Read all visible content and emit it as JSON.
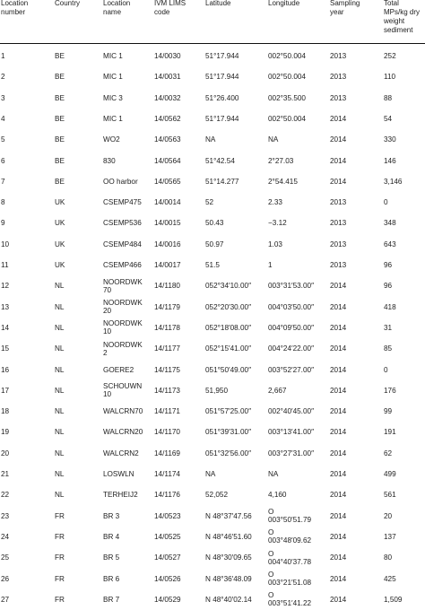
{
  "table": {
    "headers": [
      "Location\nnumber",
      "Country",
      "Location\nname",
      "IVM LIMS\ncode",
      "Latitude",
      "Longitude",
      "Sampling\nyear",
      "Total\nMPs/kg dry\nweight\nsediment"
    ],
    "rows": [
      [
        "1",
        "BE",
        "MIC 1",
        "14/0030",
        "51°17.944",
        "002°50.004",
        "2013",
        "252"
      ],
      [
        "2",
        "BE",
        "MIC 1",
        "14/0031",
        "51°17.944",
        "002°50.004",
        "2013",
        "110"
      ],
      [
        "3",
        "BE",
        "MIC 3",
        "14/0032",
        "51°26.400",
        "002°35.500",
        "2013",
        "88"
      ],
      [
        "4",
        "BE",
        "MIC 1",
        "14/0562",
        "51°17.944",
        "002°50.004",
        "2014",
        "54"
      ],
      [
        "5",
        "BE",
        "WO2",
        "14/0563",
        "NA",
        "NA",
        "2014",
        "330"
      ],
      [
        "6",
        "BE",
        "830",
        "14/0564",
        "51°42.54",
        "2°27.03",
        "2014",
        "146"
      ],
      [
        "7",
        "BE",
        "OO harbor",
        "14/0565",
        "51°14.277",
        "2°54.415",
        "2014",
        "3,146"
      ],
      [
        "8",
        "UK",
        "CSEMP475",
        "14/0014",
        "52",
        "2.33",
        "2013",
        "0"
      ],
      [
        "9",
        "UK",
        "CSEMP536",
        "14/0015",
        "50.43",
        "−3.12",
        "2013",
        "348"
      ],
      [
        "10",
        "UK",
        "CSEMP484",
        "14/0016",
        "50.97",
        "1.03",
        "2013",
        "643"
      ],
      [
        "11",
        "UK",
        "CSEMP466",
        "14/0017",
        "51.5",
        "1",
        "2013",
        "96"
      ],
      [
        "12",
        "NL",
        "NOORDWK\n70",
        "14/1180",
        "052°34′10.00″",
        "003°31′53.00″",
        "2014",
        "96"
      ],
      [
        "13",
        "NL",
        "NOORDWK\n20",
        "14/1179",
        "052°20′30.00″",
        "004°03′50.00″",
        "2014",
        "418"
      ],
      [
        "14",
        "NL",
        "NOORDWK\n10",
        "14/1178",
        "052°18′08.00″",
        "004°09′50.00″",
        "2014",
        "31"
      ],
      [
        "15",
        "NL",
        "NOORDWK\n2",
        "14/1177",
        "052°15′41.00″",
        "004°24′22.00″",
        "2014",
        "85"
      ],
      [
        "16",
        "NL",
        "GOERE2",
        "14/1175",
        "051°50′49.00″",
        "003°52′27.00″",
        "2014",
        "0"
      ],
      [
        "17",
        "NL",
        "SCHOUWN\n10",
        "14/1173",
        "51,950",
        "2,667",
        "2014",
        "176"
      ],
      [
        "18",
        "NL",
        "WALCRN70",
        "14/1171",
        "051°57′25.00″",
        "002°40′45.00″",
        "2014",
        "99"
      ],
      [
        "19",
        "NL",
        "WALCRN20",
        "14/1170",
        "051°39′31.00″",
        "003°13′41.00″",
        "2014",
        "191"
      ],
      [
        "20",
        "NL",
        "WALCRN2",
        "14/1169",
        "051°32′56.00″",
        "003°27′31.00″",
        "2014",
        "62"
      ],
      [
        "21",
        "NL",
        "LOSWLN",
        "14/1174",
        "NA",
        "NA",
        "2014",
        "499"
      ],
      [
        "22",
        "NL",
        "TERHEIJ2",
        "14/1176",
        "52,052",
        "4,160",
        "2014",
        "561"
      ],
      [
        "23",
        "FR",
        "BR 3",
        "14/0523",
        "N 48°37′47.56",
        "O\n003°50′51.79",
        "2014",
        "20"
      ],
      [
        "24",
        "FR",
        "BR 4",
        "14/0525",
        "N 48°46′51.60",
        "O\n003°48′09.62",
        "2014",
        "137"
      ],
      [
        "25",
        "FR",
        "BR 5",
        "14/0527",
        "N 48°30′09.65",
        "O\n004°40′37.78",
        "2014",
        "80"
      ],
      [
        "26",
        "FR",
        "BR 6",
        "14/0526",
        "N 48°36′48.09",
        "O\n003°21′51.08",
        "2014",
        "425"
      ],
      [
        "27",
        "FR",
        "BR 7",
        "14/0529",
        "N 48°40′02.14",
        "O\n003°51′41.22",
        "2014",
        "1,509"
      ]
    ]
  }
}
